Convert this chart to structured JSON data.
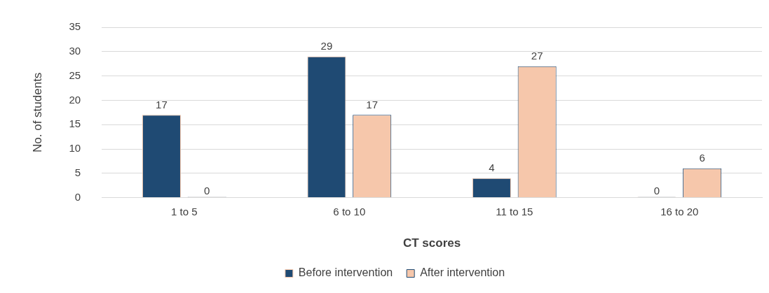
{
  "chart_data": {
    "type": "bar",
    "xlabel": "CT scores",
    "ylabel": "No. of students",
    "categories": [
      "1 to 5",
      "6 to 10",
      "11 to 15",
      "16 to 20"
    ],
    "series": [
      {
        "name": "Before intervention",
        "color": "#1f4a73",
        "values": [
          17,
          29,
          4,
          0
        ]
      },
      {
        "name": "After intervention",
        "color": "#f6c7ab",
        "values": [
          0,
          17,
          27,
          6
        ]
      }
    ],
    "ylim": [
      0,
      35
    ],
    "yticks": [
      0,
      5,
      10,
      15,
      20,
      25,
      30,
      35
    ],
    "grid": "y",
    "legend": "bottom",
    "data_labels": true
  }
}
